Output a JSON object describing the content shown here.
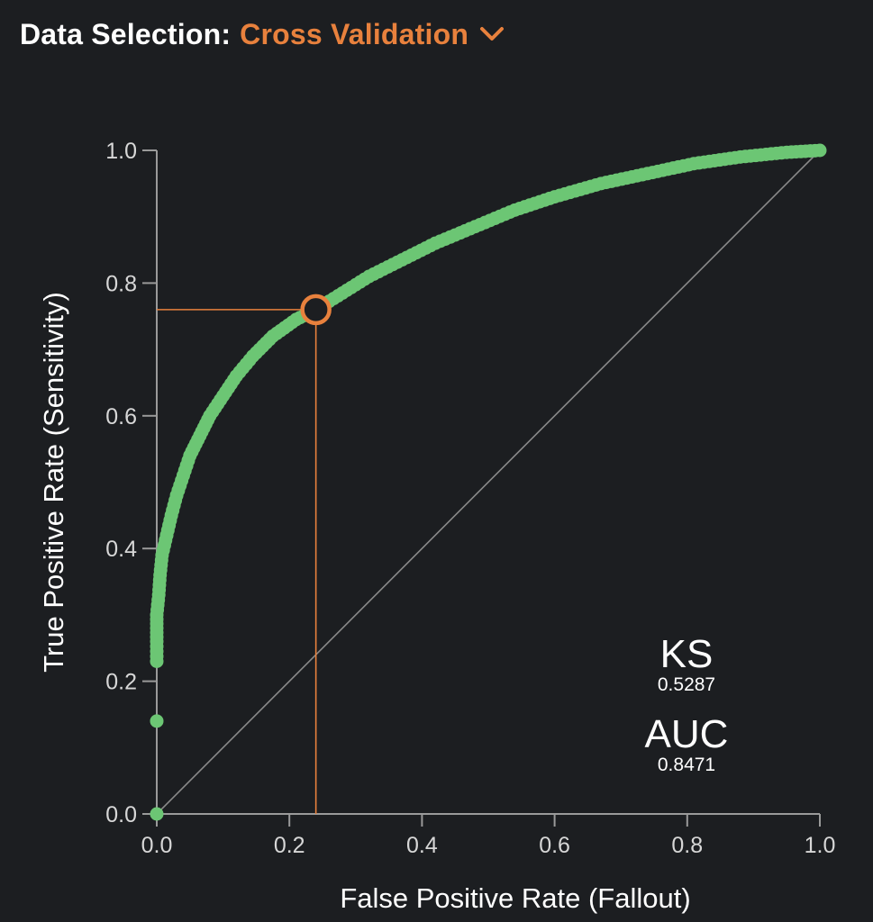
{
  "header": {
    "label": "Data Selection:",
    "selected": "Cross Validation"
  },
  "colors": {
    "background": "#1c1e21",
    "curve": "#6cc674",
    "accent": "#e8813d",
    "axis": "#9a9a9a",
    "diagonal": "#8a8a8a"
  },
  "icons": {
    "dropdown": "chevron-down-icon"
  },
  "metrics": {
    "ks_label": "KS",
    "ks_value": "0.5287",
    "auc_label": "AUC",
    "auc_value": "0.8471"
  },
  "chart_data": {
    "type": "scatter",
    "title": "",
    "xlabel": "False Positive Rate (Fallout)",
    "ylabel": "True Positive Rate (Sensitivity)",
    "xlim": [
      0,
      1
    ],
    "ylim": [
      0,
      1
    ],
    "xticks": [
      "0.0",
      "0.2",
      "0.4",
      "0.6",
      "0.8",
      "1.0"
    ],
    "yticks": [
      "0.0",
      "0.2",
      "0.4",
      "0.6",
      "0.8",
      "1.0"
    ],
    "grid": false,
    "legend": "none",
    "series": [
      {
        "points": [
          [
            0.0,
            0.0
          ],
          [
            0.0,
            0.14
          ],
          [
            0.0,
            0.23
          ],
          [
            0.0,
            0.26
          ],
          [
            0.0,
            0.28
          ],
          [
            0.0,
            0.3
          ],
          [
            0.003,
            0.33
          ],
          [
            0.005,
            0.36
          ],
          [
            0.008,
            0.39
          ],
          [
            0.015,
            0.42
          ],
          [
            0.022,
            0.45
          ],
          [
            0.03,
            0.48
          ],
          [
            0.04,
            0.51
          ],
          [
            0.05,
            0.54
          ],
          [
            0.065,
            0.57
          ],
          [
            0.08,
            0.6
          ],
          [
            0.1,
            0.63
          ],
          [
            0.12,
            0.66
          ],
          [
            0.145,
            0.69
          ],
          [
            0.175,
            0.72
          ],
          [
            0.21,
            0.745
          ],
          [
            0.24,
            0.76
          ],
          [
            0.28,
            0.785
          ],
          [
            0.32,
            0.81
          ],
          [
            0.37,
            0.835
          ],
          [
            0.42,
            0.86
          ],
          [
            0.48,
            0.885
          ],
          [
            0.54,
            0.91
          ],
          [
            0.6,
            0.93
          ],
          [
            0.67,
            0.95
          ],
          [
            0.74,
            0.965
          ],
          [
            0.81,
            0.98
          ],
          [
            0.88,
            0.99
          ],
          [
            0.95,
            0.997
          ],
          [
            1.0,
            1.0
          ]
        ]
      }
    ],
    "reference_line": [
      [
        0,
        0
      ],
      [
        1,
        1
      ]
    ],
    "selected_point": {
      "x": 0.24,
      "y": 0.76
    }
  }
}
